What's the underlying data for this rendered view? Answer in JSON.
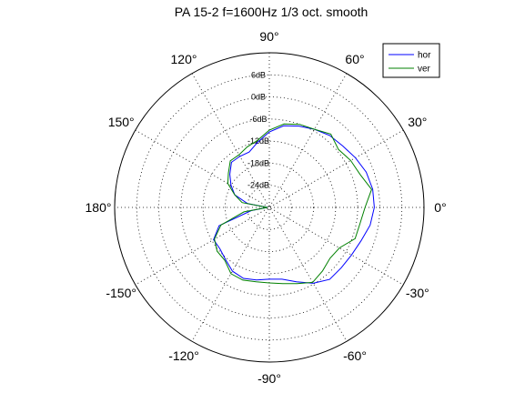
{
  "chart_data": {
    "type": "polar",
    "title": "PA  15-2   f=1600Hz    1/3 oct. smooth",
    "r_unit": "dB",
    "r_range": [
      -30,
      12
    ],
    "r_ticks": [
      -24,
      -18,
      -12,
      -6,
      0,
      6
    ],
    "r_tick_labels": [
      "-24dB",
      "-18dB",
      "-12dB",
      "-6dB",
      "0dB",
      "6dB"
    ],
    "angle_ticks": [
      90,
      60,
      30,
      0,
      -30,
      -60,
      -90,
      -120,
      -150,
      180,
      150,
      120
    ],
    "angle_tick_labels": [
      "90°",
      "60°",
      "30°",
      "0°",
      "-30°",
      "-60°",
      "-90°",
      "-120°",
      "-150°",
      "180°",
      "150°",
      "120°"
    ],
    "grid": true,
    "grid_style": "dotted",
    "legend_position": "top-right",
    "series": [
      {
        "name": "hor",
        "color": "#0000ff",
        "angles_deg": [
          -180,
          -170,
          -160,
          -150,
          -140,
          -130,
          -120,
          -110,
          -100,
          -90,
          -80,
          -70,
          -60,
          -50,
          -40,
          -30,
          -20,
          -10,
          0,
          10,
          20,
          30,
          40,
          50,
          60,
          70,
          80,
          90,
          100,
          110,
          120,
          130,
          140,
          150,
          160,
          170,
          180
        ],
        "values_db": [
          -29.5,
          -25,
          -15.5,
          -12.5,
          -12.5,
          -11.5,
          -10,
          -9.5,
          -10,
          -10.5,
          -10.2,
          -8.5,
          -6.2,
          -4.5,
          -4.5,
          -4.2,
          -3.5,
          -2.2,
          -1.5,
          -1.5,
          -2,
          -3,
          -4,
          -4.5,
          -5.5,
          -6.5,
          -7.5,
          -9.5,
          -12,
          -14,
          -14,
          -14,
          -16,
          -18,
          -20,
          -24,
          -29.5
        ]
      },
      {
        "name": "ver",
        "color": "#008000",
        "angles_deg": [
          -180,
          -170,
          -160,
          -150,
          -140,
          -130,
          -120,
          -110,
          -100,
          -90,
          -80,
          -70,
          -60,
          -50,
          -40,
          -30,
          -20,
          -10,
          0,
          10,
          20,
          30,
          40,
          50,
          60,
          70,
          80,
          90,
          100,
          110,
          120,
          130,
          140,
          150,
          160,
          170,
          180
        ],
        "values_db": [
          -29.5,
          -23,
          -16,
          -12.8,
          -11.5,
          -11.2,
          -9.2,
          -9,
          -9.5,
          -9.5,
          -9,
          -8,
          -6.5,
          -7.5,
          -8.5,
          -8,
          -5.2,
          -5,
          -4,
          -1.8,
          -3.8,
          -4.5,
          -5.5,
          -4,
          -5.5,
          -6,
          -7,
          -9,
          -11.5,
          -12.5,
          -13.5,
          -13.5,
          -15.5,
          -17,
          -20,
          -22.5,
          -29.5
        ]
      }
    ]
  }
}
